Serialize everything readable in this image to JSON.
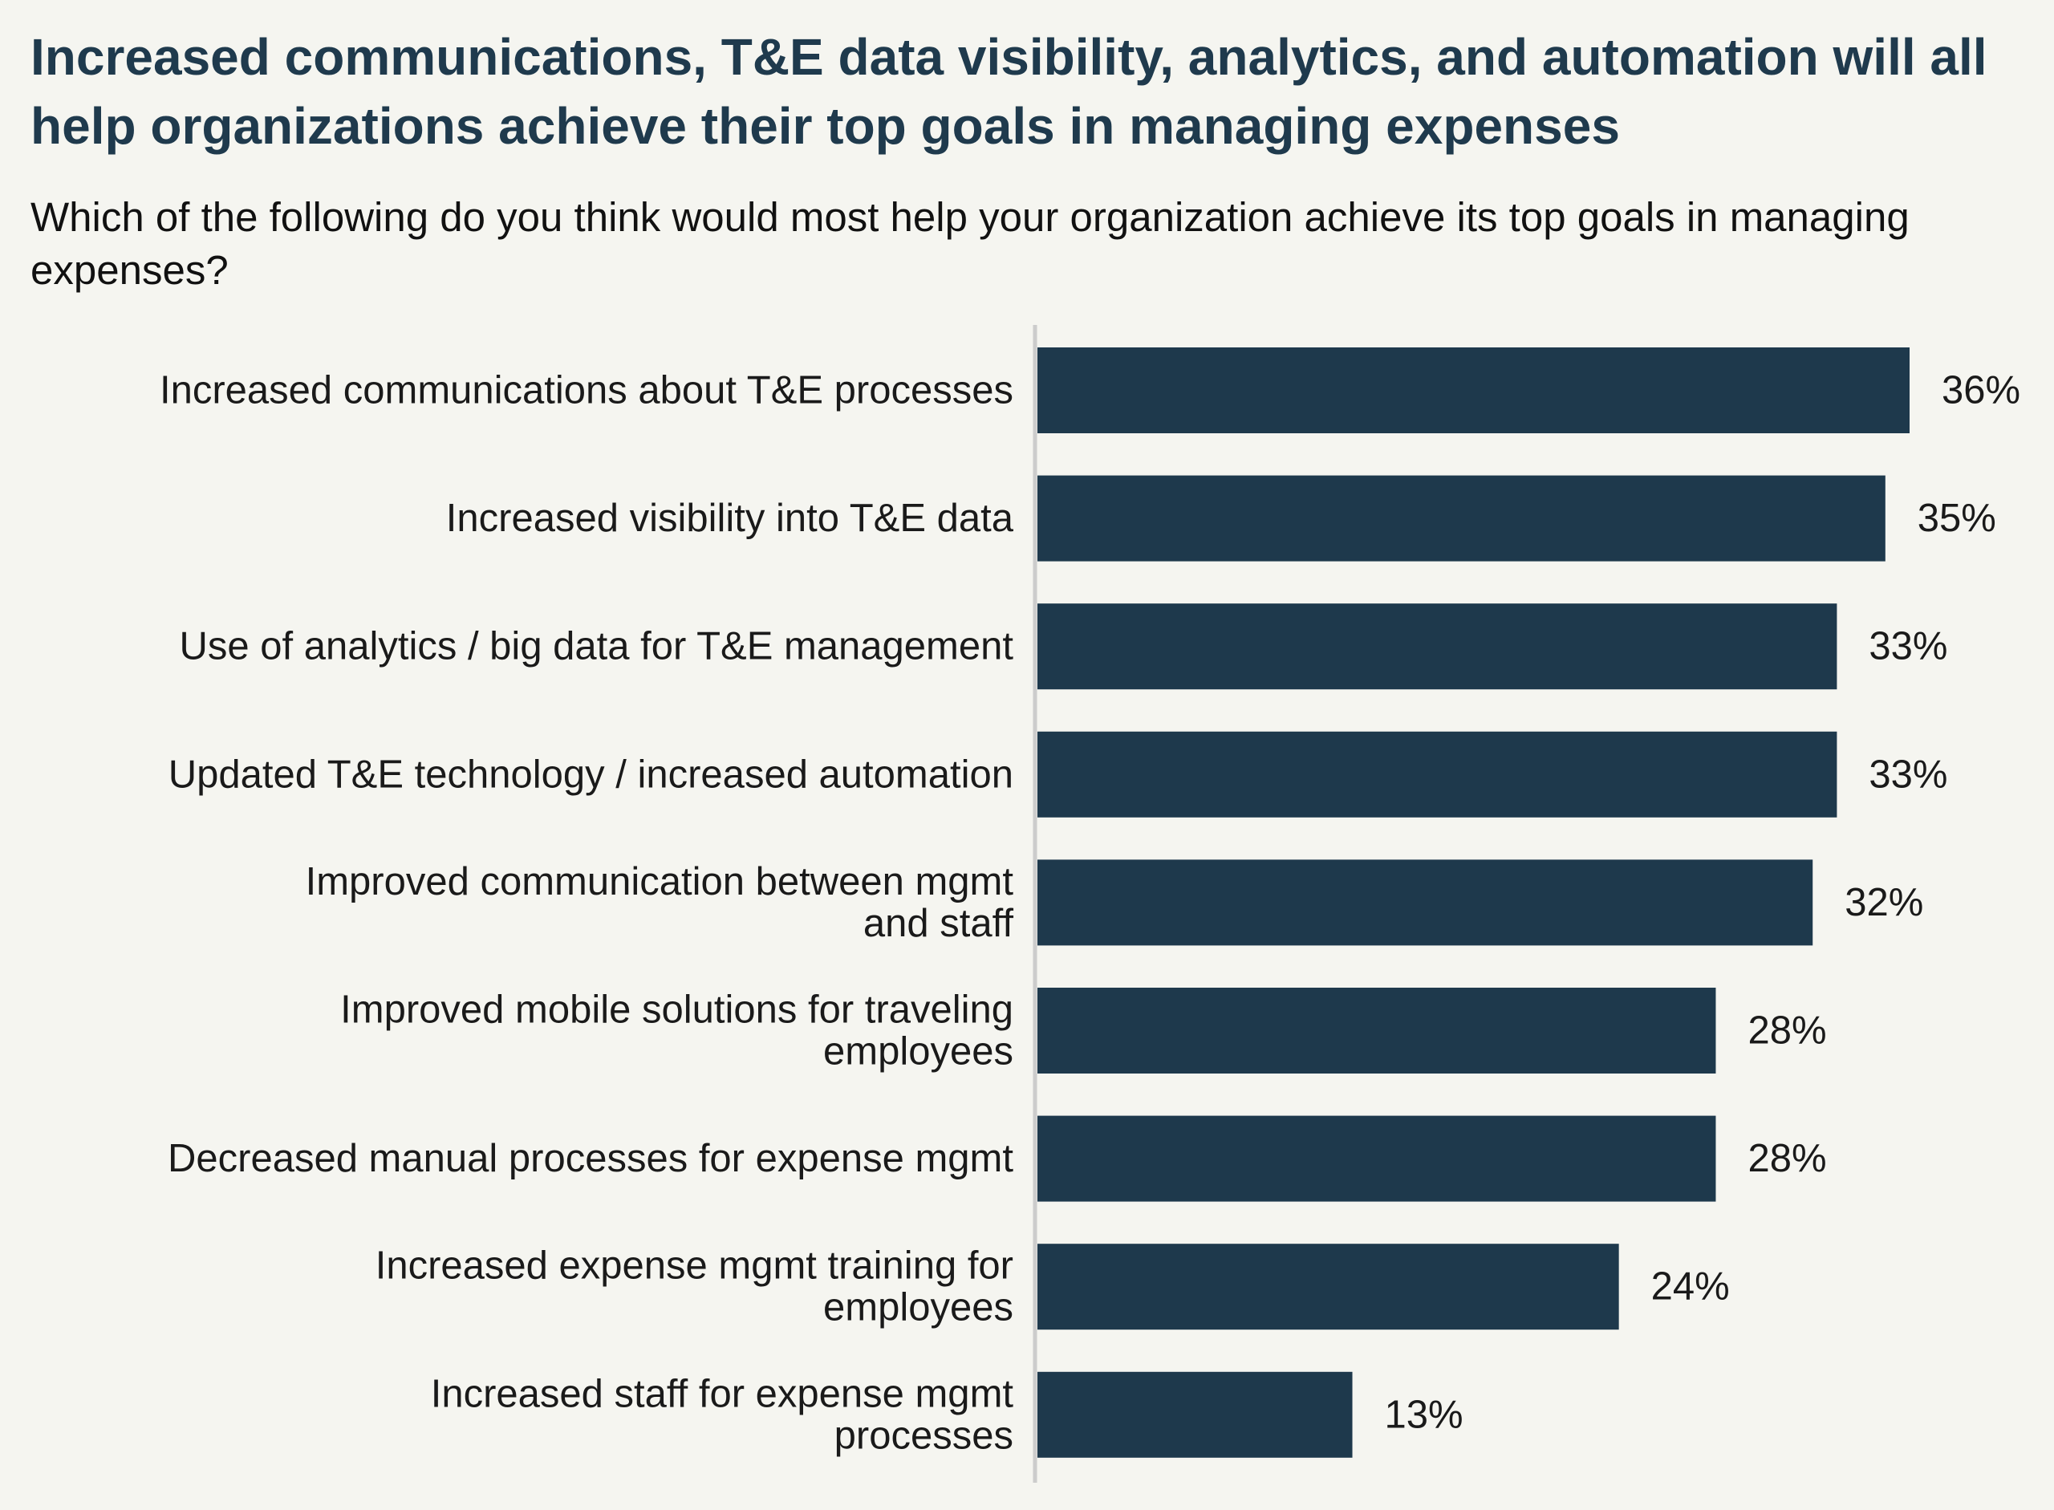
{
  "colors": {
    "background": "#f5f5f0",
    "title": "#1f3a4d",
    "bar": "#1e394c",
    "axis": "#cccccc",
    "text": "#1a1a1a"
  },
  "chart_data": {
    "type": "bar",
    "orientation": "horizontal",
    "title": "Increased communications, T&E data visibility, analytics, and automation will all help organizations achieve their top goals in managing expenses",
    "subtitle": "Which of the following do you think would most help your organization achieve its top goals in managing expenses?",
    "categories": [
      [
        "Increased communications about T&E processes"
      ],
      [
        "Increased visibility into T&E data"
      ],
      [
        "Use of analytics / big data for T&E management"
      ],
      [
        "Updated T&E technology / increased automation"
      ],
      [
        "Improved communication between mgmt",
        "and staff"
      ],
      [
        "Improved mobile solutions for traveling",
        "employees"
      ],
      [
        "Decreased manual processes for expense mgmt"
      ],
      [
        "Increased expense mgmt training for",
        "employees"
      ],
      [
        "Increased staff for expense mgmt",
        "processes"
      ]
    ],
    "values": [
      36,
      35,
      33,
      33,
      32,
      28,
      28,
      24,
      13
    ],
    "value_labels": [
      "36%",
      "35%",
      "33%",
      "33%",
      "32%",
      "28%",
      "28%",
      "24%",
      "13%"
    ],
    "xlabel": "",
    "ylabel": "",
    "xlim": [
      0,
      36
    ],
    "grid": false,
    "legend": "none"
  }
}
